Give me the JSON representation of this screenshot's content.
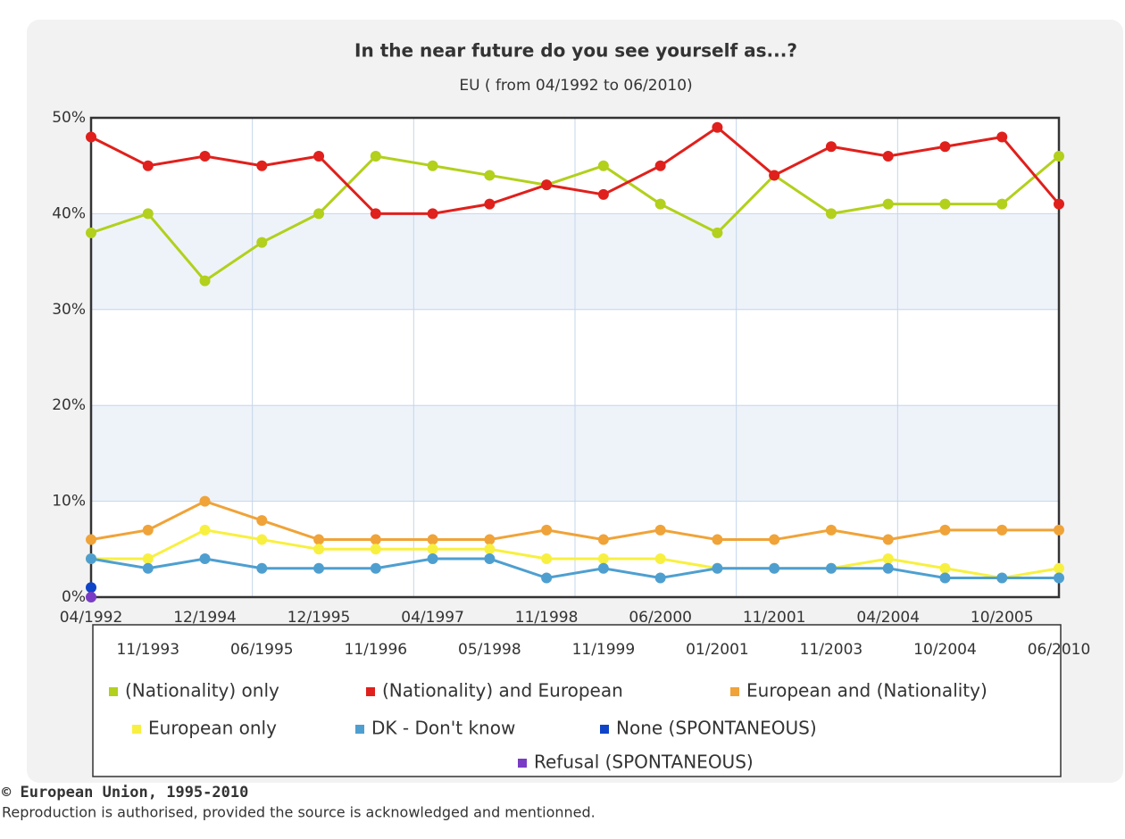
{
  "chart_data": {
    "type": "line",
    "title": "In the near future do you see yourself as...?",
    "subtitle": "EU ( from 04/1992 to 06/2010)",
    "categories": [
      "04/1992",
      "11/1993",
      "12/1994",
      "06/1995",
      "12/1995",
      "11/1996",
      "04/1997",
      "05/1998",
      "11/1998",
      "11/1999",
      "06/2000",
      "01/2001",
      "11/2001",
      "11/2003",
      "04/2004",
      "10/2004",
      "10/2005",
      "06/2010"
    ],
    "series": [
      {
        "name": "(Nationality) only",
        "color": "#b2d01c",
        "values": [
          38,
          40,
          33,
          37,
          40,
          46,
          45,
          44,
          43,
          45,
          41,
          38,
          44,
          40,
          41,
          41,
          41,
          46
        ]
      },
      {
        "name": "(Nationality) and European",
        "color": "#e0201c",
        "values": [
          48,
          45,
          46,
          45,
          46,
          40,
          40,
          41,
          43,
          42,
          45,
          49,
          44,
          47,
          46,
          47,
          48,
          41
        ]
      },
      {
        "name": "European and (Nationality)",
        "color": "#f0a338",
        "values": [
          6,
          7,
          10,
          8,
          6,
          6,
          6,
          6,
          7,
          6,
          7,
          6,
          6,
          7,
          6,
          7,
          7,
          7
        ]
      },
      {
        "name": "European only",
        "color": "#f8f040",
        "values": [
          4,
          4,
          7,
          6,
          5,
          5,
          5,
          5,
          4,
          4,
          4,
          3,
          3,
          3,
          4,
          3,
          2,
          3
        ]
      },
      {
        "name": "DK - Don't know",
        "color": "#4e9fd0",
        "values": [
          4,
          3,
          4,
          3,
          3,
          3,
          4,
          4,
          2,
          3,
          2,
          3,
          3,
          3,
          3,
          2,
          2,
          2
        ]
      },
      {
        "name": "None (SPONTANEOUS)",
        "color": "#1044c8",
        "values": [
          1,
          null,
          null,
          null,
          null,
          null,
          null,
          null,
          null,
          null,
          null,
          null,
          null,
          null,
          null,
          null,
          null,
          null
        ]
      },
      {
        "name": "Refusal (SPONTANEOUS)",
        "color": "#7a3cc4",
        "values": [
          0,
          null,
          null,
          null,
          null,
          null,
          null,
          null,
          null,
          null,
          null,
          null,
          null,
          null,
          null,
          null,
          null,
          null
        ]
      }
    ],
    "ylim": [
      0,
      50
    ],
    "yticks": [
      {
        "value": 0,
        "label": "0%"
      },
      {
        "value": 10,
        "label": "10%"
      },
      {
        "value": 20,
        "label": "20%"
      },
      {
        "value": 30,
        "label": "30%"
      },
      {
        "value": 40,
        "label": "40%"
      },
      {
        "value": 50,
        "label": "50%"
      }
    ],
    "grid": true
  },
  "footer": {
    "copyright": "© European Union, 1995-2010",
    "note": "Reproduction is authorised, provided the source is acknowledged and mentionned."
  }
}
